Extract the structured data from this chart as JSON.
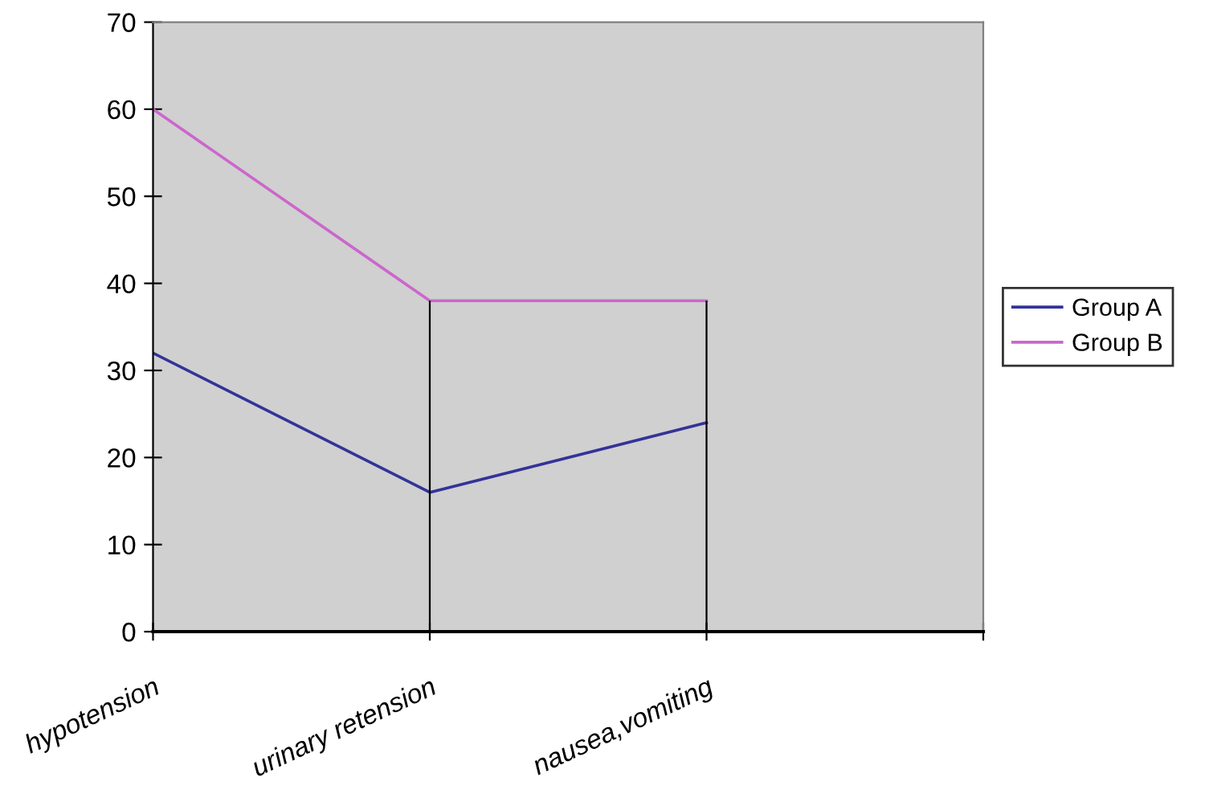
{
  "chart_data": {
    "type": "line",
    "categories": [
      "hypotension",
      "urinary retension",
      "nausea,vomiting",
      null
    ],
    "series": [
      {
        "name": "Group A",
        "color": "#333399",
        "values": [
          32,
          16,
          24,
          null
        ]
      },
      {
        "name": "Group B",
        "color": "#cc66cc",
        "values": [
          60,
          38,
          38,
          null
        ],
        "errors": [
          null,
          [
            0,
            38
          ],
          [
            0,
            38
          ],
          null
        ]
      }
    ],
    "ylim": [
      0,
      70
    ],
    "yticks": [
      0,
      10,
      20,
      30,
      40,
      50,
      60,
      70
    ],
    "grid": false,
    "legend": "right",
    "marker": "none",
    "line_style": "solid"
  }
}
